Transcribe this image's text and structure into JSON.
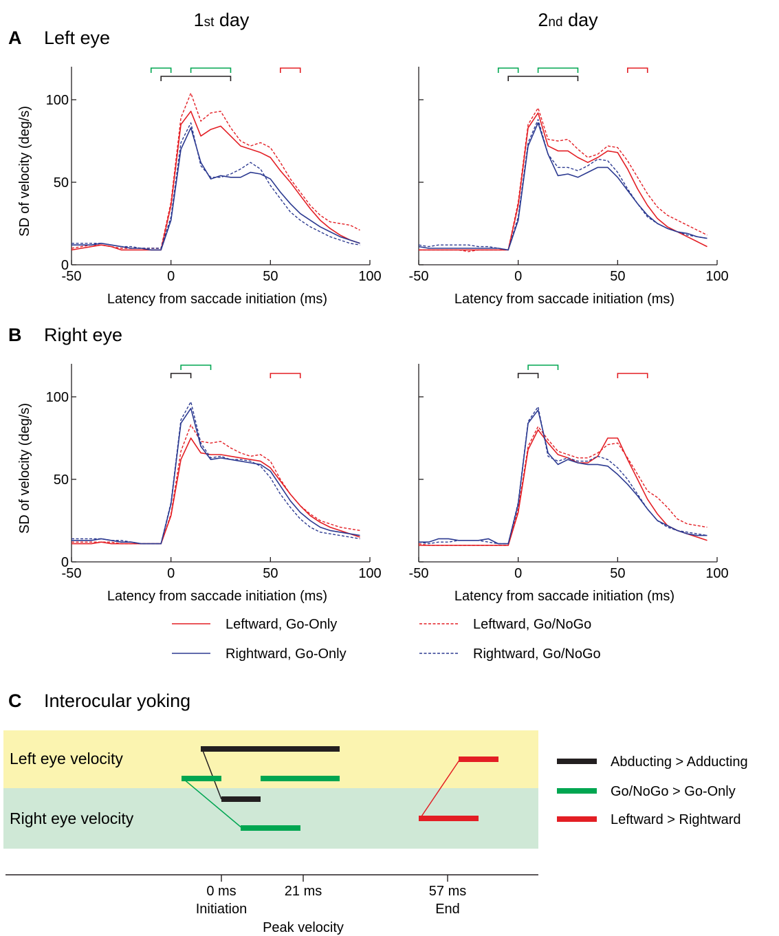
{
  "column_titles": {
    "day1": {
      "main": "1",
      "suffix": "st",
      "rest": " day"
    },
    "day2": {
      "main": "2",
      "suffix": "nd",
      "rest": " day"
    }
  },
  "panel_labels": {
    "A": {
      "letter": "A",
      "title": "Left eye"
    },
    "B": {
      "letter": "B",
      "title": "Right eye"
    },
    "C": {
      "letter": "C",
      "title": "Interocular yoking"
    }
  },
  "axes": {
    "xlabel": "Latency from saccade initiation (ms)",
    "ylabel": "SD of velocity (deg/s)",
    "xlim": [
      -50,
      100
    ],
    "ylim": [
      0,
      120
    ],
    "xticks": [
      -50,
      0,
      50,
      100
    ],
    "yticks": [
      0,
      50,
      100
    ]
  },
  "legend": [
    {
      "label": "Leftward, Go-Only",
      "color": "#e31e24",
      "dash": "solid"
    },
    {
      "label": "Leftward, Go/NoGo",
      "color": "#e31e24",
      "dash": "dashed"
    },
    {
      "label": "Rightward, Go-Only",
      "color": "#2b3990",
      "dash": "solid"
    },
    {
      "label": "Rightward, Go/NoGo",
      "color": "#2b3990",
      "dash": "dashed"
    }
  ],
  "chart_data": [
    {
      "type": "line",
      "panel": "A",
      "eye": "Left eye",
      "day": "1st day",
      "xlabel": "Latency from saccade initiation (ms)",
      "ylabel": "SD of velocity (deg/s)",
      "xlim": [
        -50,
        100
      ],
      "ylim": [
        0,
        120
      ],
      "x": [
        -50,
        -45,
        -40,
        -35,
        -30,
        -25,
        -20,
        -15,
        -10,
        -5,
        0,
        5,
        10,
        15,
        20,
        25,
        30,
        35,
        40,
        45,
        50,
        55,
        60,
        65,
        70,
        75,
        80,
        85,
        90,
        95
      ],
      "series": [
        {
          "name": "Leftward, Go-Only",
          "color": "#e31e24",
          "dash": "solid",
          "values": [
            9,
            10,
            11,
            12,
            11,
            9,
            9,
            9,
            9,
            9,
            36,
            85,
            93,
            78,
            82,
            84,
            78,
            72,
            70,
            68,
            65,
            57,
            50,
            42,
            34,
            27,
            22,
            18,
            15,
            13
          ]
        },
        {
          "name": "Leftward, Go/NoGo",
          "color": "#e31e24",
          "dash": "dashed",
          "values": [
            10,
            11,
            12,
            12,
            11,
            10,
            10,
            10,
            10,
            10,
            38,
            89,
            104,
            87,
            92,
            93,
            83,
            75,
            72,
            74,
            71,
            62,
            52,
            44,
            36,
            30,
            26,
            25,
            24,
            21
          ]
        },
        {
          "name": "Rightward, Go-Only",
          "color": "#2b3990",
          "dash": "solid",
          "values": [
            12,
            12,
            12,
            13,
            12,
            11,
            10,
            10,
            9,
            9,
            27,
            70,
            83,
            62,
            52,
            54,
            53,
            53,
            56,
            55,
            52,
            44,
            37,
            31,
            27,
            23,
            20,
            17,
            15,
            13
          ]
        },
        {
          "name": "Rightward, Go/NoGo",
          "color": "#2b3990",
          "dash": "dashed",
          "values": [
            13,
            13,
            13,
            13,
            12,
            11,
            11,
            10,
            10,
            10,
            29,
            74,
            86,
            60,
            53,
            53,
            55,
            58,
            62,
            58,
            48,
            40,
            32,
            27,
            23,
            20,
            17,
            15,
            13,
            12
          ]
        }
      ],
      "significance_bars": [
        {
          "color": "#00a651",
          "start": -10,
          "end": 0,
          "row": "top"
        },
        {
          "color": "#00a651",
          "start": 10,
          "end": 30,
          "row": "top"
        },
        {
          "color": "#e31e24",
          "start": 55,
          "end": 65,
          "row": "top"
        },
        {
          "color": "#231f20",
          "start": -5,
          "end": 30,
          "row": "bottom"
        }
      ]
    },
    {
      "type": "line",
      "panel": "A",
      "eye": "Left eye",
      "day": "2nd day",
      "xlabel": "Latency from saccade initiation (ms)",
      "ylabel": "",
      "xlim": [
        -50,
        100
      ],
      "ylim": [
        0,
        120
      ],
      "x": [
        -50,
        -45,
        -40,
        -35,
        -30,
        -25,
        -20,
        -15,
        -10,
        -5,
        0,
        5,
        10,
        15,
        20,
        25,
        30,
        35,
        40,
        45,
        50,
        55,
        60,
        65,
        70,
        75,
        80,
        85,
        90,
        95
      ],
      "series": [
        {
          "name": "Leftward, Go-Only",
          "color": "#e31e24",
          "dash": "solid",
          "values": [
            9,
            9,
            9,
            9,
            9,
            9,
            9,
            9,
            9,
            9,
            36,
            83,
            92,
            72,
            69,
            69,
            65,
            62,
            65,
            69,
            68,
            58,
            46,
            36,
            28,
            23,
            20,
            17,
            14,
            11
          ]
        },
        {
          "name": "Leftward, Go/NoGo",
          "color": "#e31e24",
          "dash": "dashed",
          "values": [
            9,
            9,
            9,
            9,
            9,
            8,
            9,
            9,
            9,
            9,
            38,
            85,
            95,
            76,
            75,
            76,
            70,
            65,
            67,
            72,
            71,
            63,
            53,
            43,
            35,
            30,
            27,
            24,
            21,
            18
          ]
        },
        {
          "name": "Rightward, Go-Only",
          "color": "#2b3990",
          "dash": "solid",
          "values": [
            11,
            10,
            10,
            10,
            10,
            10,
            10,
            10,
            10,
            9,
            27,
            72,
            86,
            67,
            54,
            55,
            53,
            56,
            59,
            59,
            53,
            45,
            37,
            30,
            25,
            22,
            20,
            19,
            17,
            16
          ]
        },
        {
          "name": "Rightward, Go/NoGo",
          "color": "#2b3990",
          "dash": "dashed",
          "values": [
            12,
            11,
            12,
            12,
            12,
            12,
            11,
            11,
            10,
            9,
            29,
            74,
            88,
            67,
            59,
            59,
            57,
            60,
            64,
            63,
            56,
            46,
            37,
            29,
            25,
            22,
            20,
            18,
            17,
            16
          ]
        }
      ],
      "significance_bars": [
        {
          "color": "#00a651",
          "start": -10,
          "end": 0,
          "row": "top"
        },
        {
          "color": "#00a651",
          "start": 10,
          "end": 30,
          "row": "top"
        },
        {
          "color": "#e31e24",
          "start": 55,
          "end": 65,
          "row": "top"
        },
        {
          "color": "#231f20",
          "start": -5,
          "end": 30,
          "row": "bottom"
        }
      ]
    },
    {
      "type": "line",
      "panel": "B",
      "eye": "Right eye",
      "day": "1st day",
      "xlabel": "Latency from saccade initiation (ms)",
      "ylabel": "SD of velocity (deg/s)",
      "xlim": [
        -50,
        100
      ],
      "ylim": [
        0,
        120
      ],
      "x": [
        -50,
        -45,
        -40,
        -35,
        -30,
        -25,
        -20,
        -15,
        -10,
        -5,
        0,
        5,
        10,
        15,
        20,
        25,
        30,
        35,
        40,
        45,
        50,
        55,
        60,
        65,
        70,
        75,
        80,
        85,
        90,
        95
      ],
      "series": [
        {
          "name": "Leftward, Go-Only",
          "color": "#e31e24",
          "dash": "solid",
          "values": [
            11,
            11,
            11,
            12,
            11,
            11,
            11,
            11,
            11,
            11,
            28,
            62,
            75,
            66,
            65,
            65,
            64,
            63,
            62,
            61,
            57,
            49,
            41,
            34,
            28,
            24,
            21,
            19,
            17,
            15
          ]
        },
        {
          "name": "Leftward, Go/NoGo",
          "color": "#e31e24",
          "dash": "dashed",
          "values": [
            12,
            12,
            12,
            12,
            12,
            11,
            11,
            11,
            11,
            11,
            29,
            67,
            83,
            73,
            72,
            73,
            69,
            66,
            64,
            65,
            61,
            50,
            41,
            34,
            29,
            25,
            23,
            21,
            20,
            19
          ]
        },
        {
          "name": "Rightward, Go-Only",
          "color": "#2b3990",
          "dash": "solid",
          "values": [
            13,
            13,
            13,
            14,
            13,
            12,
            12,
            11,
            11,
            11,
            35,
            84,
            93,
            70,
            62,
            63,
            62,
            61,
            60,
            59,
            55,
            46,
            37,
            30,
            25,
            21,
            19,
            18,
            17,
            16
          ]
        },
        {
          "name": "Rightward, Go/NoGo",
          "color": "#2b3990",
          "dash": "dashed",
          "values": [
            14,
            14,
            14,
            14,
            13,
            13,
            12,
            11,
            11,
            11,
            36,
            86,
            97,
            72,
            63,
            64,
            62,
            62,
            61,
            58,
            51,
            41,
            33,
            26,
            21,
            18,
            17,
            16,
            15,
            14
          ]
        }
      ],
      "significance_bars": [
        {
          "color": "#00a651",
          "start": 5,
          "end": 20,
          "row": "top"
        },
        {
          "color": "#231f20",
          "start": 0,
          "end": 10,
          "row": "bottom"
        },
        {
          "color": "#e31e24",
          "start": 50,
          "end": 65,
          "row": "bottom"
        }
      ]
    },
    {
      "type": "line",
      "panel": "B",
      "eye": "Right eye",
      "day": "2nd day",
      "xlabel": "Latency from saccade initiation (ms)",
      "ylabel": "",
      "xlim": [
        -50,
        100
      ],
      "ylim": [
        0,
        120
      ],
      "x": [
        -50,
        -45,
        -40,
        -35,
        -30,
        -25,
        -20,
        -15,
        -10,
        -5,
        0,
        5,
        10,
        15,
        20,
        25,
        30,
        35,
        40,
        45,
        50,
        55,
        60,
        65,
        70,
        75,
        80,
        85,
        90,
        95
      ],
      "series": [
        {
          "name": "Leftward, Go-Only",
          "color": "#e31e24",
          "dash": "solid",
          "values": [
            10,
            10,
            10,
            10,
            10,
            10,
            10,
            10,
            10,
            10,
            30,
            68,
            80,
            72,
            65,
            63,
            60,
            60,
            64,
            75,
            75,
            62,
            50,
            38,
            29,
            22,
            19,
            17,
            15,
            13
          ]
        },
        {
          "name": "Leftward, Go/NoGo",
          "color": "#e31e24",
          "dash": "dashed",
          "values": [
            11,
            10,
            10,
            10,
            10,
            10,
            10,
            10,
            10,
            10,
            32,
            70,
            82,
            74,
            67,
            65,
            63,
            63,
            66,
            71,
            72,
            63,
            53,
            43,
            39,
            33,
            26,
            23,
            22,
            21
          ]
        },
        {
          "name": "Rightward, Go-Only",
          "color": "#2b3990",
          "dash": "solid",
          "values": [
            12,
            12,
            14,
            14,
            13,
            13,
            13,
            14,
            11,
            11,
            35,
            84,
            92,
            66,
            59,
            62,
            60,
            59,
            59,
            58,
            53,
            47,
            40,
            32,
            25,
            22,
            19,
            17,
            16,
            16
          ]
        },
        {
          "name": "Rightward, Go/NoGo",
          "color": "#2b3990",
          "dash": "dashed",
          "values": [
            12,
            11,
            12,
            12,
            13,
            13,
            13,
            12,
            11,
            11,
            36,
            85,
            94,
            64,
            61,
            63,
            61,
            61,
            64,
            62,
            57,
            50,
            41,
            32,
            25,
            21,
            19,
            18,
            17,
            16
          ]
        }
      ],
      "significance_bars": [
        {
          "color": "#00a651",
          "start": 5,
          "end": 20,
          "row": "top"
        },
        {
          "color": "#231f20",
          "start": 0,
          "end": 10,
          "row": "bottom"
        },
        {
          "color": "#e31e24",
          "start": 50,
          "end": 65,
          "row": "bottom"
        }
      ]
    }
  ],
  "yoking": {
    "rows": {
      "left": {
        "label": "Left eye velocity",
        "color": "#fbf4b0"
      },
      "right": {
        "label": "Right eye velocity",
        "color": "#cfe8d6"
      }
    },
    "timeline": [
      {
        "top": "0 ms",
        "bottom": "Initiation"
      },
      {
        "top": "21 ms",
        "bottom": ""
      },
      {
        "top": "57 ms",
        "bottom": "End"
      }
    ],
    "timeline_caption": "Peak velocity",
    "legend": [
      {
        "label": "Abducting > Adducting",
        "color": "#231f20"
      },
      {
        "label": "Go/NoGo > Go-Only",
        "color": "#00a651"
      },
      {
        "label": "Leftward > Rightward",
        "color": "#e31e24"
      }
    ]
  }
}
